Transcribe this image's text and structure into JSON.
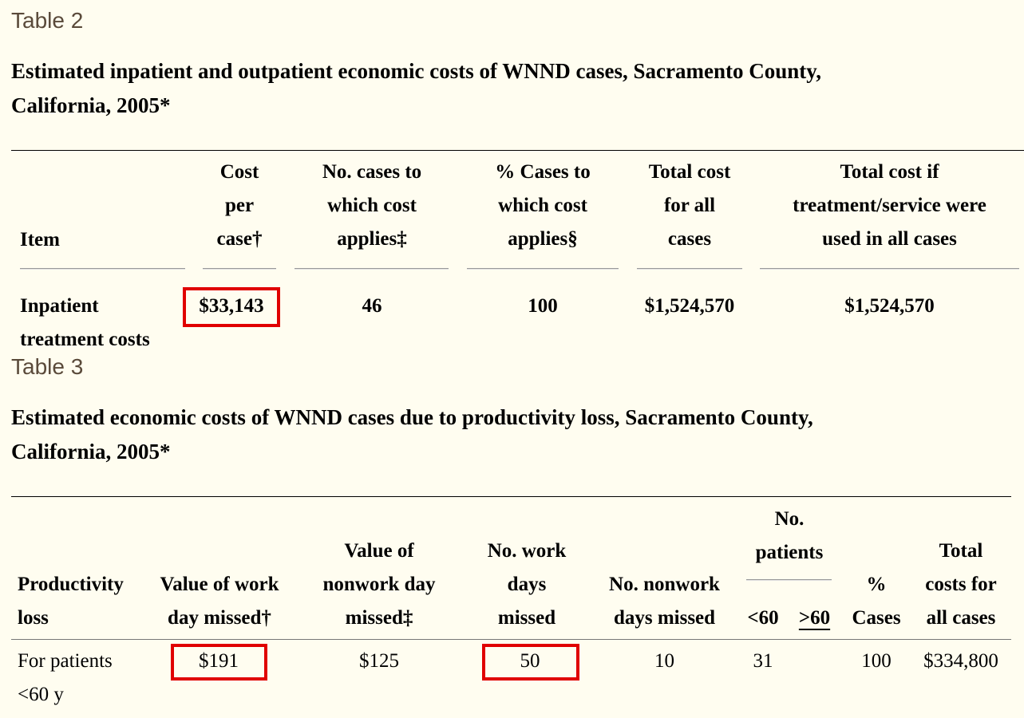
{
  "table2": {
    "label": "Table 2",
    "caption_line1": "Estimated inpatient and outpatient economic costs of WNND cases, Sacramento County,",
    "caption_line2": "California, 2005*",
    "headers": {
      "item": "Item",
      "cost_per_case": [
        "Cost",
        "per",
        "case†"
      ],
      "no_cases": [
        "No. cases to",
        "which cost",
        "applies‡"
      ],
      "pct_cases": [
        "% Cases to",
        "which cost",
        "applies§"
      ],
      "total_cost": [
        "Total cost",
        "for all",
        "cases"
      ],
      "total_if": [
        "Total cost if",
        "treatment/service were",
        "used in all cases"
      ]
    },
    "row": {
      "item": [
        "Inpatient",
        "treatment costs"
      ],
      "cost_per_case": "$33,143",
      "no_cases": "46",
      "pct_cases": "100",
      "total_cost": "$1,524,570",
      "total_if": "$1,524,570"
    }
  },
  "table3": {
    "label": "Table 3",
    "caption_line1": "Estimated economic costs of WNND cases due to productivity loss, Sacramento County,",
    "caption_line2": "California, 2005*",
    "headers": {
      "productivity_loss": [
        "Productivity",
        "loss"
      ],
      "work_day": [
        "Value of work",
        "day missed†"
      ],
      "nonwork_day": [
        "Value of",
        "nonwork day",
        "missed‡"
      ],
      "work_days": [
        "No. work",
        "days",
        "missed"
      ],
      "nonwork_days": [
        "No. nonwork",
        "days missed"
      ],
      "patients": [
        "No.",
        "patients"
      ],
      "lt60": "<60",
      "ge60": ">60",
      "pct_cases": [
        "%",
        "Cases"
      ],
      "total": [
        "Total",
        "costs for",
        "all cases"
      ]
    },
    "row": {
      "productivity_loss": [
        "For patients",
        "<60 y"
      ],
      "work_day": "$191",
      "nonwork_day": "$125",
      "work_days": "50",
      "nonwork_days": "10",
      "lt60": "31",
      "ge60": "",
      "pct_cases": "100",
      "total": "$334,800"
    }
  },
  "highlight_color": "#e00000"
}
